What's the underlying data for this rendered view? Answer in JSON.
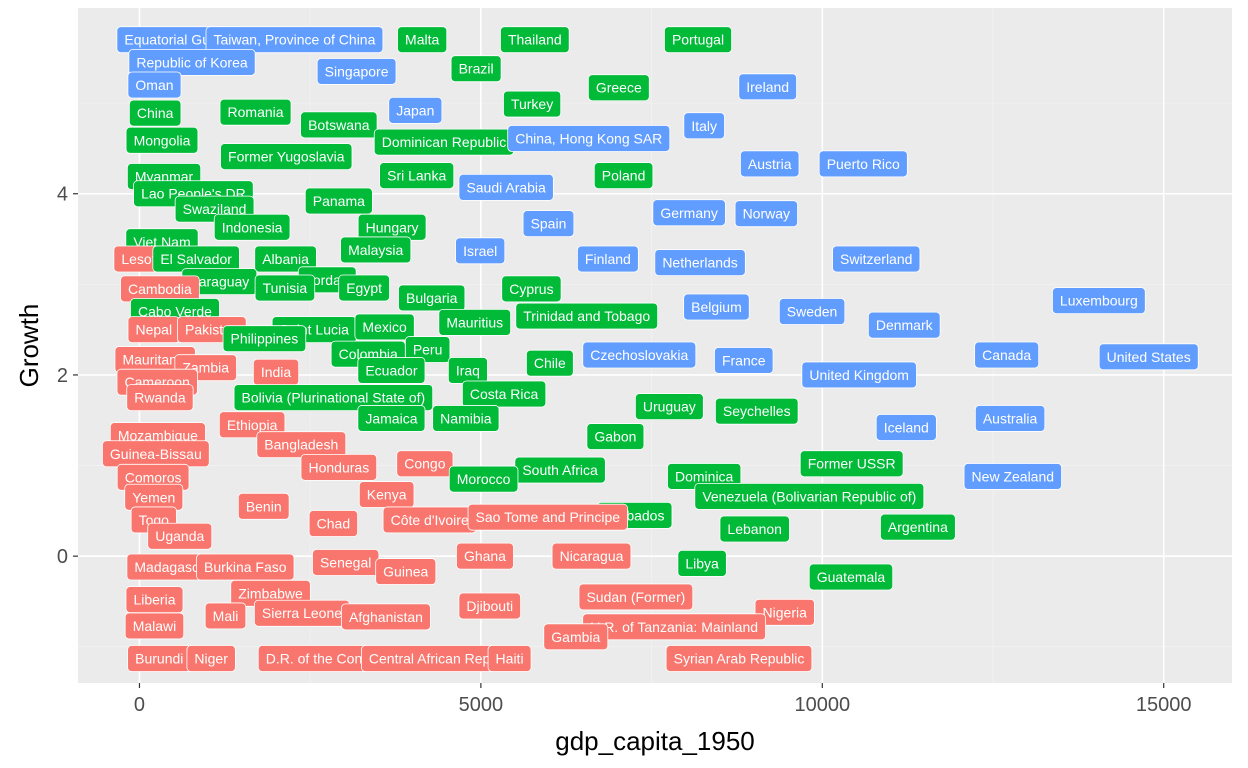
{
  "chart_data": {
    "type": "scatter",
    "xlabel": "gdp_capita_1950",
    "ylabel": "Growth",
    "xlim": [
      -900,
      16000
    ],
    "ylim": [
      -1.4,
      6.05
    ],
    "x_ticks": [
      0,
      5000,
      10000,
      15000
    ],
    "x_tick_labels": [
      "0",
      "5000",
      "10000",
      "15000"
    ],
    "y_ticks": [
      0,
      2,
      4
    ],
    "y_tick_labels": [
      "0",
      "2",
      "4"
    ],
    "grid": true,
    "legend": "none",
    "group_colors": {
      "low": "#F8766D",
      "mid": "#00BA38",
      "high": "#619CFF"
    },
    "points": [
      {
        "label": "Equatorial Guinea",
        "x": 600,
        "y": 5.7,
        "group": "high"
      },
      {
        "label": "Taiwan, Province of China",
        "x": 2270,
        "y": 5.7,
        "group": "high"
      },
      {
        "label": "Malta",
        "x": 4140,
        "y": 5.7,
        "group": "mid"
      },
      {
        "label": "Thailand",
        "x": 5790,
        "y": 5.7,
        "group": "mid"
      },
      {
        "label": "Portugal",
        "x": 8180,
        "y": 5.7,
        "group": "mid"
      },
      {
        "label": "Republic of Korea",
        "x": 770,
        "y": 5.45,
        "group": "high"
      },
      {
        "label": "Singapore",
        "x": 3180,
        "y": 5.35,
        "group": "high"
      },
      {
        "label": "Brazil",
        "x": 4930,
        "y": 5.38,
        "group": "mid"
      },
      {
        "label": "Oman",
        "x": 220,
        "y": 5.2,
        "group": "high"
      },
      {
        "label": "Ireland",
        "x": 9200,
        "y": 5.18,
        "group": "high"
      },
      {
        "label": "Greece",
        "x": 7020,
        "y": 5.17,
        "group": "mid"
      },
      {
        "label": "Turkey",
        "x": 5750,
        "y": 4.99,
        "group": "mid"
      },
      {
        "label": "Romania",
        "x": 1700,
        "y": 4.9,
        "group": "mid"
      },
      {
        "label": "Japan",
        "x": 4040,
        "y": 4.92,
        "group": "high"
      },
      {
        "label": "China",
        "x": 230,
        "y": 4.89,
        "group": "mid"
      },
      {
        "label": "Botswana",
        "x": 2920,
        "y": 4.76,
        "group": "mid"
      },
      {
        "label": "Italy",
        "x": 8270,
        "y": 4.75,
        "group": "high"
      },
      {
        "label": "Mongolia",
        "x": 330,
        "y": 4.59,
        "group": "mid"
      },
      {
        "label": "Dominican Republic",
        "x": 4460,
        "y": 4.57,
        "group": "mid"
      },
      {
        "label": "China, Hong Kong SAR",
        "x": 6580,
        "y": 4.61,
        "group": "high"
      },
      {
        "label": "Former Yugoslavia",
        "x": 2150,
        "y": 4.41,
        "group": "mid"
      },
      {
        "label": "Austria",
        "x": 9230,
        "y": 4.33,
        "group": "high"
      },
      {
        "label": "Puerto Rico",
        "x": 10600,
        "y": 4.33,
        "group": "high"
      },
      {
        "label": "Sri Lanka",
        "x": 4060,
        "y": 4.2,
        "group": "mid"
      },
      {
        "label": "Poland",
        "x": 7090,
        "y": 4.2,
        "group": "mid"
      },
      {
        "label": "Myanmar",
        "x": 360,
        "y": 4.19,
        "group": "mid"
      },
      {
        "label": "Saudi Arabia",
        "x": 5370,
        "y": 4.07,
        "group": "high"
      },
      {
        "label": "Lao People's DR",
        "x": 790,
        "y": 4.0,
        "group": "mid"
      },
      {
        "label": "Panama",
        "x": 2920,
        "y": 3.92,
        "group": "mid"
      },
      {
        "label": "Germany",
        "x": 8050,
        "y": 3.79,
        "group": "high"
      },
      {
        "label": "Norway",
        "x": 9180,
        "y": 3.78,
        "group": "high"
      },
      {
        "label": "Swaziland",
        "x": 1100,
        "y": 3.83,
        "group": "mid"
      },
      {
        "label": "Spain",
        "x": 5990,
        "y": 3.67,
        "group": "high"
      },
      {
        "label": "Indonesia",
        "x": 1650,
        "y": 3.63,
        "group": "mid"
      },
      {
        "label": "Hungary",
        "x": 3700,
        "y": 3.63,
        "group": "mid"
      },
      {
        "label": "Viet Nam",
        "x": 330,
        "y": 3.47,
        "group": "mid"
      },
      {
        "label": "Israel",
        "x": 4990,
        "y": 3.37,
        "group": "high"
      },
      {
        "label": "Malaysia",
        "x": 3460,
        "y": 3.38,
        "group": "mid"
      },
      {
        "label": "Lesotho",
        "x": 100,
        "y": 3.28,
        "group": "low"
      },
      {
        "label": "El Salvador",
        "x": 830,
        "y": 3.28,
        "group": "mid"
      },
      {
        "label": "Albania",
        "x": 2140,
        "y": 3.28,
        "group": "mid"
      },
      {
        "label": "Finland",
        "x": 6860,
        "y": 3.28,
        "group": "high"
      },
      {
        "label": "Netherlands",
        "x": 8210,
        "y": 3.24,
        "group": "high"
      },
      {
        "label": "Switzerland",
        "x": 10790,
        "y": 3.28,
        "group": "high"
      },
      {
        "label": "Jordan",
        "x": 2750,
        "y": 3.05,
        "group": "mid"
      },
      {
        "label": "Paraguay",
        "x": 1170,
        "y": 3.03,
        "group": "mid"
      },
      {
        "label": "Tunisia",
        "x": 2130,
        "y": 2.96,
        "group": "mid"
      },
      {
        "label": "Egypt",
        "x": 3290,
        "y": 2.96,
        "group": "mid"
      },
      {
        "label": "Cyprus",
        "x": 5740,
        "y": 2.95,
        "group": "mid"
      },
      {
        "label": "Cambodia",
        "x": 300,
        "y": 2.95,
        "group": "low"
      },
      {
        "label": "Bulgaria",
        "x": 4280,
        "y": 2.85,
        "group": "mid"
      },
      {
        "label": "Luxembourg",
        "x": 14050,
        "y": 2.82,
        "group": "high"
      },
      {
        "label": "Cabo Verde",
        "x": 520,
        "y": 2.7,
        "group": "mid"
      },
      {
        "label": "Belgium",
        "x": 8450,
        "y": 2.75,
        "group": "high"
      },
      {
        "label": "Sweden",
        "x": 9850,
        "y": 2.7,
        "group": "high"
      },
      {
        "label": "Trinidad and Tobago",
        "x": 6550,
        "y": 2.65,
        "group": "mid"
      },
      {
        "label": "Mauritius",
        "x": 4910,
        "y": 2.58,
        "group": "mid"
      },
      {
        "label": "Denmark",
        "x": 11200,
        "y": 2.55,
        "group": "high"
      },
      {
        "label": "Nepal",
        "x": 210,
        "y": 2.5,
        "group": "low"
      },
      {
        "label": "Pakistan",
        "x": 1060,
        "y": 2.5,
        "group": "low"
      },
      {
        "label": "Saint Lucia",
        "x": 2560,
        "y": 2.5,
        "group": "mid"
      },
      {
        "label": "Mexico",
        "x": 3590,
        "y": 2.53,
        "group": "mid"
      },
      {
        "label": "Philippines",
        "x": 1830,
        "y": 2.4,
        "group": "mid"
      },
      {
        "label": "Peru",
        "x": 4220,
        "y": 2.28,
        "group": "mid"
      },
      {
        "label": "Colombia",
        "x": 3350,
        "y": 2.23,
        "group": "mid"
      },
      {
        "label": "Czechoslovakia",
        "x": 7320,
        "y": 2.22,
        "group": "high"
      },
      {
        "label": "France",
        "x": 8850,
        "y": 2.16,
        "group": "high"
      },
      {
        "label": "Canada",
        "x": 12700,
        "y": 2.22,
        "group": "high"
      },
      {
        "label": "United States",
        "x": 14780,
        "y": 2.2,
        "group": "high"
      },
      {
        "label": "Mauritania",
        "x": 230,
        "y": 2.17,
        "group": "low"
      },
      {
        "label": "Chile",
        "x": 6010,
        "y": 2.13,
        "group": "mid"
      },
      {
        "label": "Zambia",
        "x": 970,
        "y": 2.08,
        "group": "low"
      },
      {
        "label": "Ecuador",
        "x": 3690,
        "y": 2.05,
        "group": "mid"
      },
      {
        "label": "Iraq",
        "x": 4810,
        "y": 2.05,
        "group": "mid"
      },
      {
        "label": "India",
        "x": 2000,
        "y": 2.03,
        "group": "low"
      },
      {
        "label": "United Kingdom",
        "x": 10540,
        "y": 2.0,
        "group": "high"
      },
      {
        "label": "Cameroon",
        "x": 260,
        "y": 1.92,
        "group": "low"
      },
      {
        "label": "Costa Rica",
        "x": 5340,
        "y": 1.79,
        "group": "mid"
      },
      {
        "label": "Bolivia (Plurinational State of)",
        "x": 2840,
        "y": 1.75,
        "group": "mid"
      },
      {
        "label": "Rwanda",
        "x": 300,
        "y": 1.75,
        "group": "low"
      },
      {
        "label": "Uruguay",
        "x": 7760,
        "y": 1.65,
        "group": "mid"
      },
      {
        "label": "Seychelles",
        "x": 9040,
        "y": 1.6,
        "group": "mid"
      },
      {
        "label": "Australia",
        "x": 12750,
        "y": 1.52,
        "group": "high"
      },
      {
        "label": "Jamaica",
        "x": 3690,
        "y": 1.52,
        "group": "mid"
      },
      {
        "label": "Namibia",
        "x": 4780,
        "y": 1.52,
        "group": "mid"
      },
      {
        "label": "Ethiopia",
        "x": 1650,
        "y": 1.45,
        "group": "low"
      },
      {
        "label": "Iceland",
        "x": 11230,
        "y": 1.42,
        "group": "high"
      },
      {
        "label": "Mozambique",
        "x": 270,
        "y": 1.33,
        "group": "low"
      },
      {
        "label": "Gabon",
        "x": 6970,
        "y": 1.32,
        "group": "mid"
      },
      {
        "label": "Bangladesh",
        "x": 2370,
        "y": 1.23,
        "group": "low"
      },
      {
        "label": "Guinea-Bissau",
        "x": 240,
        "y": 1.13,
        "group": "low"
      },
      {
        "label": "Former USSR",
        "x": 10430,
        "y": 1.02,
        "group": "mid"
      },
      {
        "label": "Honduras",
        "x": 2920,
        "y": 0.98,
        "group": "low"
      },
      {
        "label": "Congo",
        "x": 4180,
        "y": 1.02,
        "group": "low"
      },
      {
        "label": "South Africa",
        "x": 6160,
        "y": 0.95,
        "group": "mid"
      },
      {
        "label": "Dominica",
        "x": 8270,
        "y": 0.88,
        "group": "mid"
      },
      {
        "label": "New Zealand",
        "x": 12790,
        "y": 0.88,
        "group": "high"
      },
      {
        "label": "Comoros",
        "x": 200,
        "y": 0.87,
        "group": "low"
      },
      {
        "label": "Morocco",
        "x": 5040,
        "y": 0.85,
        "group": "mid"
      },
      {
        "label": "Yemen",
        "x": 210,
        "y": 0.65,
        "group": "low"
      },
      {
        "label": "Kenya",
        "x": 3620,
        "y": 0.68,
        "group": "low"
      },
      {
        "label": "Venezuela (Bolivarian Republic of)",
        "x": 9810,
        "y": 0.66,
        "group": "mid"
      },
      {
        "label": "Benin",
        "x": 1820,
        "y": 0.55,
        "group": "low"
      },
      {
        "label": "Barbados",
        "x": 7250,
        "y": 0.45,
        "group": "mid"
      },
      {
        "label": "Togo",
        "x": 210,
        "y": 0.4,
        "group": "low"
      },
      {
        "label": "Chad",
        "x": 2840,
        "y": 0.36,
        "group": "low"
      },
      {
        "label": "Côte d'Ivoire",
        "x": 4250,
        "y": 0.4,
        "group": "low"
      },
      {
        "label": "Sao Tome and Principe",
        "x": 5980,
        "y": 0.43,
        "group": "low"
      },
      {
        "label": "Lebanon",
        "x": 9010,
        "y": 0.3,
        "group": "mid"
      },
      {
        "label": "Argentina",
        "x": 11400,
        "y": 0.32,
        "group": "mid"
      },
      {
        "label": "Uganda",
        "x": 590,
        "y": 0.22,
        "group": "low"
      },
      {
        "label": "Ghana",
        "x": 5060,
        "y": 0.0,
        "group": "low"
      },
      {
        "label": "Nicaragua",
        "x": 6620,
        "y": 0.0,
        "group": "low"
      },
      {
        "label": "Senegal",
        "x": 3020,
        "y": -0.07,
        "group": "low"
      },
      {
        "label": "Madagascar",
        "x": 490,
        "y": -0.12,
        "group": "low"
      },
      {
        "label": "Burkina Faso",
        "x": 1550,
        "y": -0.12,
        "group": "low"
      },
      {
        "label": "Libya",
        "x": 8240,
        "y": -0.08,
        "group": "mid"
      },
      {
        "label": "Guinea",
        "x": 3900,
        "y": -0.17,
        "group": "low"
      },
      {
        "label": "Guatemala",
        "x": 10420,
        "y": -0.23,
        "group": "mid"
      },
      {
        "label": "Zimbabwe",
        "x": 1920,
        "y": -0.41,
        "group": "low"
      },
      {
        "label": "Sudan (Former)",
        "x": 7270,
        "y": -0.45,
        "group": "low"
      },
      {
        "label": "Liberia",
        "x": 220,
        "y": -0.48,
        "group": "low"
      },
      {
        "label": "Djibouti",
        "x": 5130,
        "y": -0.55,
        "group": "low"
      },
      {
        "label": "Mali",
        "x": 1260,
        "y": -0.66,
        "group": "low"
      },
      {
        "label": "Sierra Leone",
        "x": 2380,
        "y": -0.63,
        "group": "low"
      },
      {
        "label": "Afghanistan",
        "x": 3610,
        "y": -0.67,
        "group": "low"
      },
      {
        "label": "Nigeria",
        "x": 9450,
        "y": -0.62,
        "group": "low"
      },
      {
        "label": "Malawi",
        "x": 220,
        "y": -0.77,
        "group": "low"
      },
      {
        "label": "U.R. of Tanzania: Mainland",
        "x": 7830,
        "y": -0.78,
        "group": "low"
      },
      {
        "label": "Gambia",
        "x": 6390,
        "y": -0.89,
        "group": "low"
      },
      {
        "label": "Burundi",
        "x": 290,
        "y": -1.13,
        "group": "low"
      },
      {
        "label": "Niger",
        "x": 1050,
        "y": -1.13,
        "group": "low"
      },
      {
        "label": "D.R. of the Congo",
        "x": 2670,
        "y": -1.13,
        "group": "low"
      },
      {
        "label": "Central African Republic",
        "x": 4460,
        "y": -1.13,
        "group": "low"
      },
      {
        "label": "Haiti",
        "x": 5420,
        "y": -1.13,
        "group": "low"
      },
      {
        "label": "Syrian Arab Republic",
        "x": 8780,
        "y": -1.13,
        "group": "low"
      }
    ]
  }
}
